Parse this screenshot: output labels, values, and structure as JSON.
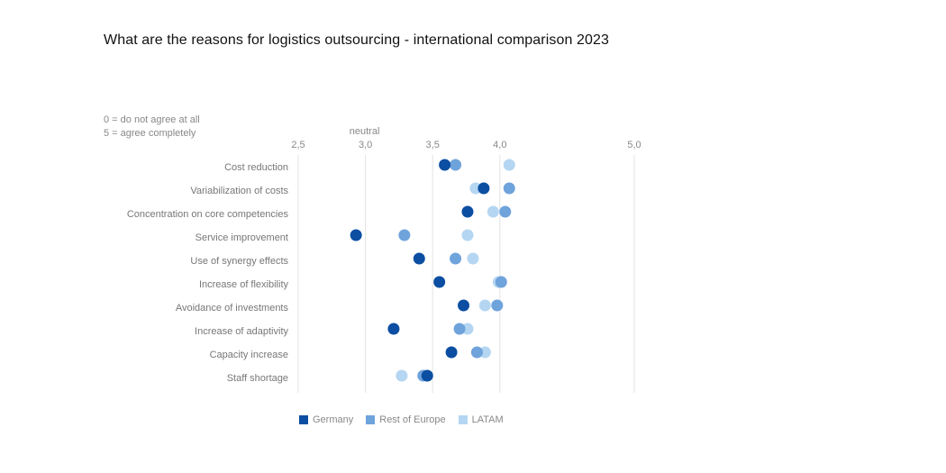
{
  "chart_data": {
    "type": "scatter",
    "title": "What are the reasons for logistics outsourcing - international comparison 2023",
    "scale_note": [
      "0 = do not agree at all",
      "5 = agree completely"
    ],
    "neutral_label": "neutral",
    "neutral_value": 3.0,
    "xlim": [
      2.5,
      5.0
    ],
    "xticks": [
      {
        "value": 2.5,
        "label": "2,5"
      },
      {
        "value": 3.0,
        "label": "3,0"
      },
      {
        "value": 3.5,
        "label": "3,5"
      },
      {
        "value": 4.0,
        "label": "4,0"
      },
      {
        "value": 5.0,
        "label": "5,0"
      }
    ],
    "categories": [
      "Cost reduction",
      "Variabilization of costs",
      "Concentration on core competencies",
      "Service improvement",
      "Use of synergy effects",
      "Increase of flexibility",
      "Avoidance of investments",
      "Increase of adaptivity",
      "Capacity increase",
      "Staff shortage"
    ],
    "series": [
      {
        "name": "LATAM",
        "color": "#b5d6f2",
        "values": [
          4.07,
          3.82,
          3.95,
          3.76,
          3.8,
          3.99,
          3.89,
          3.76,
          3.89,
          3.27
        ]
      },
      {
        "name": "Rest of Europe",
        "color": "#6fa3dc",
        "values": [
          3.67,
          4.07,
          4.04,
          3.29,
          3.67,
          4.01,
          3.98,
          3.7,
          3.83,
          3.43
        ]
      },
      {
        "name": "Germany",
        "color": "#0b4ea2",
        "values": [
          3.59,
          3.88,
          3.76,
          2.93,
          3.4,
          3.55,
          3.73,
          3.21,
          3.64,
          3.46
        ]
      }
    ],
    "legend_order": [
      "Germany",
      "Rest of Europe",
      "LATAM"
    ],
    "legend_position": "bottom"
  }
}
